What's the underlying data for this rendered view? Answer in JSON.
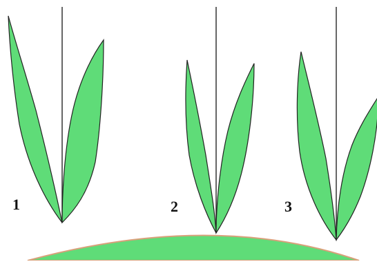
{
  "colors": {
    "leaf_fill": "#5fdc78",
    "leaf_outline": "#222222",
    "stem": "#333333",
    "ground_fill": "#5fdc78",
    "ground_edge": "#d9a07a"
  },
  "figures": [
    {
      "label": "1"
    },
    {
      "label": "2"
    },
    {
      "label": "3"
    }
  ]
}
